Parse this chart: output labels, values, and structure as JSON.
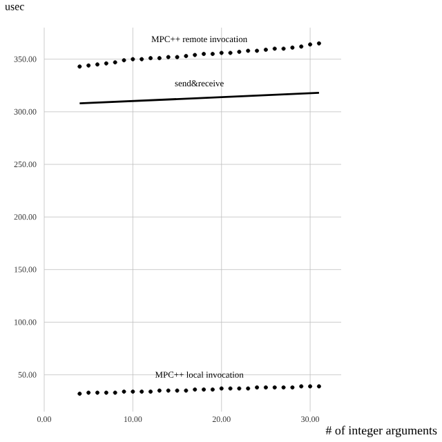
{
  "chart_data": {
    "type": "line",
    "ylabel": "usec",
    "xlabel": "# of integer arguments",
    "xlim": [
      0,
      33.5
    ],
    "ylim": [
      15,
      380
    ],
    "xticks": [
      {
        "value": 0,
        "label": "0.00"
      },
      {
        "value": 10,
        "label": "10.00"
      },
      {
        "value": 20,
        "label": "20.00"
      },
      {
        "value": 30,
        "label": "30.00"
      }
    ],
    "yticks": [
      {
        "value": 50,
        "label": "50.00"
      },
      {
        "value": 100,
        "label": "100.00"
      },
      {
        "value": 150,
        "label": "150.00"
      },
      {
        "value": 200,
        "label": "200.00"
      },
      {
        "value": 250,
        "label": "250.00"
      },
      {
        "value": 300,
        "label": "300.00"
      },
      {
        "value": 350,
        "label": "350.00"
      }
    ],
    "grid": true,
    "series": [
      {
        "name": "MPC++ remote invocation",
        "type": "scatter",
        "marker": "circle",
        "color": "#000000",
        "x": [
          4,
          5,
          6,
          7,
          8,
          9,
          10,
          11,
          12,
          13,
          14,
          15,
          16,
          17,
          18,
          19,
          20,
          21,
          22,
          23,
          24,
          25,
          26,
          27,
          28,
          29,
          30,
          31
        ],
        "values": [
          343,
          344,
          345,
          346,
          347,
          349,
          350,
          350,
          351,
          351,
          352,
          352,
          353,
          354,
          355,
          355,
          356,
          356,
          357,
          358,
          358,
          359,
          360,
          360,
          361,
          362,
          364,
          365
        ]
      },
      {
        "name": "send&receive",
        "marker": "none",
        "color": "#000000",
        "x": [
          4,
          31
        ],
        "values": [
          308,
          318
        ]
      },
      {
        "name": "MPC++ local invocation",
        "type": "scatter",
        "marker": "circle",
        "color": "#000000",
        "x": [
          4,
          5,
          6,
          7,
          8,
          9,
          10,
          11,
          12,
          13,
          14,
          15,
          16,
          17,
          18,
          19,
          20,
          21,
          22,
          23,
          24,
          25,
          26,
          27,
          28,
          29,
          30,
          31
        ],
        "values": [
          32,
          33,
          33,
          33,
          33,
          34,
          34,
          34,
          34,
          35,
          35,
          35,
          35,
          36,
          36,
          36,
          37,
          37,
          37,
          37,
          38,
          38,
          38,
          38,
          38,
          39,
          39,
          39
        ]
      }
    ]
  }
}
